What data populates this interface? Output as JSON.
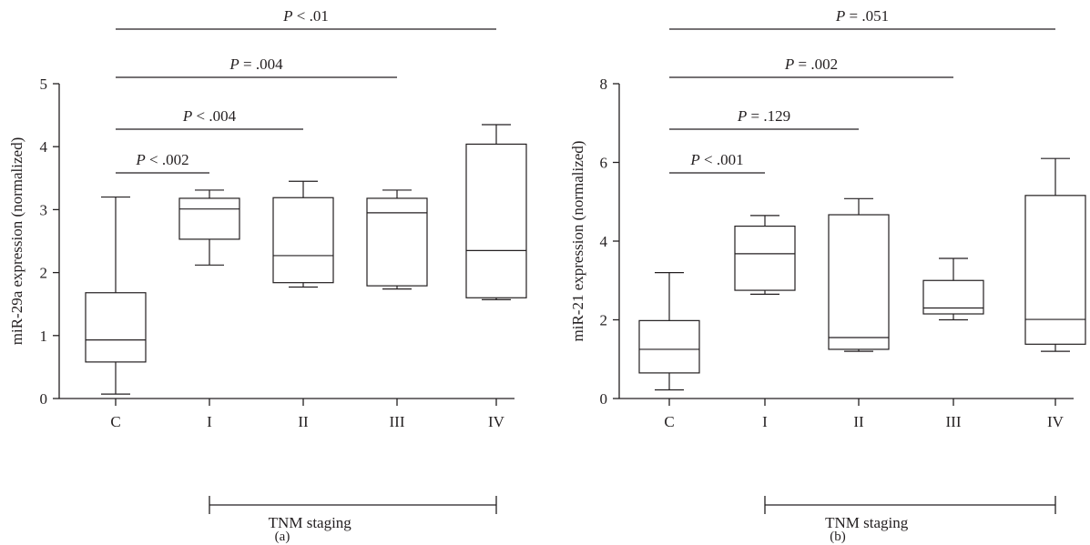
{
  "chart_data": [
    {
      "type": "box",
      "panel_label": "(a)",
      "ylabel": "miR-29a expression (normalized)",
      "ylim": [
        0,
        5
      ],
      "yticks": [
        0,
        1,
        2,
        3,
        4,
        5
      ],
      "categories": [
        "C",
        "I",
        "II",
        "III",
        "IV"
      ],
      "boxes": [
        {
          "category": "C",
          "whisker_low": 0.07,
          "q1": 0.58,
          "median": 0.93,
          "q3": 1.68,
          "whisker_high": 3.2
        },
        {
          "category": "I",
          "whisker_low": 2.12,
          "q1": 2.53,
          "median": 3.01,
          "q3": 3.18,
          "whisker_high": 3.31
        },
        {
          "category": "II",
          "whisker_low": 1.77,
          "q1": 1.84,
          "median": 2.27,
          "q3": 3.19,
          "whisker_high": 3.45
        },
        {
          "category": "III",
          "whisker_low": 1.74,
          "q1": 1.79,
          "median": 2.95,
          "q3": 3.18,
          "whisker_high": 3.31
        },
        {
          "category": "IV",
          "whisker_low": 1.57,
          "q1": 1.6,
          "median": 2.35,
          "q3": 4.04,
          "whisker_high": 4.35
        }
      ],
      "significance": [
        {
          "from": "C",
          "to": "I",
          "p_label": "P",
          "p_text": " < .002"
        },
        {
          "from": "C",
          "to": "II",
          "p_label": "P",
          "p_text": " < .004"
        },
        {
          "from": "C",
          "to": "III",
          "p_label": "P",
          "p_text": " = .004"
        },
        {
          "from": "C",
          "to": "IV",
          "p_label": "P",
          "p_text": " < .01"
        }
      ],
      "group_bracket": {
        "from": "I",
        "to": "IV",
        "label": "TNM staging"
      }
    },
    {
      "type": "box",
      "panel_label": "(b)",
      "ylabel": "miR-21 expression (normalized)",
      "ylim": [
        0,
        8
      ],
      "yticks": [
        0,
        2,
        4,
        6,
        8
      ],
      "categories": [
        "C",
        "I",
        "II",
        "III",
        "IV"
      ],
      "boxes": [
        {
          "category": "C",
          "whisker_low": 0.22,
          "q1": 0.65,
          "median": 1.25,
          "q3": 1.98,
          "whisker_high": 3.2
        },
        {
          "category": "I",
          "whisker_low": 2.65,
          "q1": 2.75,
          "median": 3.68,
          "q3": 4.38,
          "whisker_high": 4.65
        },
        {
          "category": "II",
          "whisker_low": 1.2,
          "q1": 1.25,
          "median": 1.55,
          "q3": 4.67,
          "whisker_high": 5.08
        },
        {
          "category": "III",
          "whisker_low": 2.0,
          "q1": 2.15,
          "median": 2.3,
          "q3": 3.0,
          "whisker_high": 3.56
        },
        {
          "category": "IV",
          "whisker_low": 1.2,
          "q1": 1.38,
          "median": 2.01,
          "q3": 5.16,
          "whisker_high": 6.1
        }
      ],
      "significance": [
        {
          "from": "C",
          "to": "I",
          "p_label": "P",
          "p_text": " < .001"
        },
        {
          "from": "C",
          "to": "II",
          "p_label": "P",
          "p_text": " = .129"
        },
        {
          "from": "C",
          "to": "III",
          "p_label": "P",
          "p_text": " = .002"
        },
        {
          "from": "C",
          "to": "IV",
          "p_label": "P",
          "p_text": " = .051"
        }
      ],
      "group_bracket": {
        "from": "I",
        "to": "IV",
        "label": "TNM staging"
      }
    }
  ]
}
